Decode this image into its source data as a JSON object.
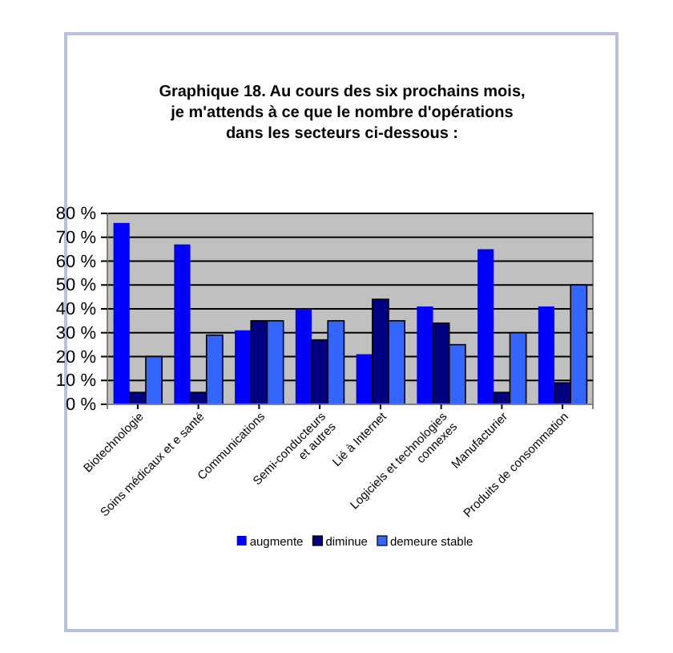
{
  "chart_data": {
    "type": "bar",
    "title": "Graphique 18. Au cours des six prochains mois,\nje m'attends à ce que le nombre d'opérations\ndans les secteurs ci-dessous :",
    "categories": [
      "Biotechnologie",
      "Soins médicaux et e santé",
      "Communications",
      "Semi-conducteurs\net autres",
      "Lié à Internet",
      "Logiciels et technologies\nconnexes",
      "Manufacturier",
      "Produits de consommation"
    ],
    "series": [
      {
        "name": "augmente",
        "color": "#0000ff",
        "values": [
          76,
          67,
          31,
          40,
          21,
          41,
          65,
          41
        ]
      },
      {
        "name": "diminue",
        "color": "#000080",
        "values": [
          5,
          5,
          35,
          27,
          44,
          34,
          5,
          9
        ]
      },
      {
        "name": "demeure stable",
        "color": "#3366ff",
        "values": [
          20,
          29,
          35,
          35,
          35,
          25,
          30,
          50
        ]
      }
    ],
    "ylim": [
      0,
      80
    ],
    "yticks": [
      {
        "value": 0,
        "label": "0 %"
      },
      {
        "value": 10,
        "label": "10 %"
      },
      {
        "value": 20,
        "label": "20 %"
      },
      {
        "value": 30,
        "label": "30 %"
      },
      {
        "value": 40,
        "label": "40 %"
      },
      {
        "value": 50,
        "label": "50 %"
      },
      {
        "value": 60,
        "label": "60 %"
      },
      {
        "value": 70,
        "label": "70 %"
      },
      {
        "value": 80,
        "label": "80 %"
      }
    ],
    "grid": "y",
    "legend": "bottom"
  }
}
